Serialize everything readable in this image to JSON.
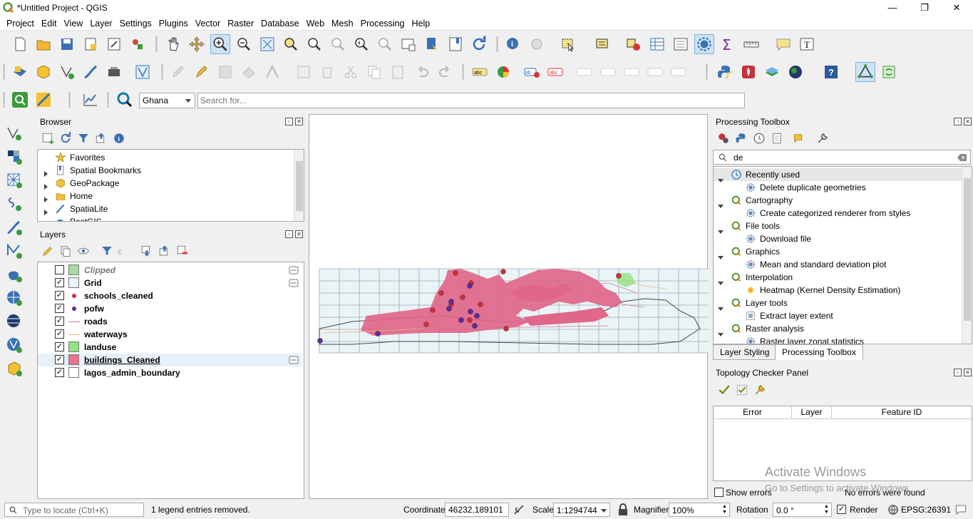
{
  "window": {
    "title": "*Untitled Project - QGIS",
    "minimize": "—",
    "restore": "❐",
    "close": "✕"
  },
  "menu": [
    "Project",
    "Edit",
    "View",
    "Layer",
    "Settings",
    "Plugins",
    "Vector",
    "Raster",
    "Database",
    "Web",
    "Mesh",
    "Processing",
    "Help"
  ],
  "locator_bar": {
    "location_value": "Ghana",
    "search_placeholder": "Search for..."
  },
  "browser": {
    "title": "Browser",
    "items": [
      {
        "label": "Favorites",
        "expandable": false
      },
      {
        "label": "Spatial Bookmarks",
        "expandable": true
      },
      {
        "label": "GeoPackage",
        "expandable": true
      },
      {
        "label": "Home",
        "expandable": true
      },
      {
        "label": "SpatiaLite",
        "expandable": true
      },
      {
        "label": "PostGIS",
        "expandable": true
      }
    ]
  },
  "layers": {
    "title": "Layers",
    "items": [
      {
        "name": "Clipped",
        "checked": false,
        "symbol": "fill",
        "color": "#a8dca0",
        "italic": true
      },
      {
        "name": "Grid",
        "checked": true,
        "symbol": "fill",
        "color": "#eaf4f7"
      },
      {
        "name": "schools_cleaned",
        "checked": true,
        "symbol": "point",
        "color": "#c8313a"
      },
      {
        "name": "pofw",
        "checked": true,
        "symbol": "point",
        "color": "#5a2e98"
      },
      {
        "name": "roads",
        "checked": true,
        "symbol": "line",
        "color": "#d4788e"
      },
      {
        "name": "waterways",
        "checked": true,
        "symbol": "line",
        "color": "#e8b874"
      },
      {
        "name": "landuse",
        "checked": true,
        "symbol": "fill",
        "color": "#8ee47e"
      },
      {
        "name": "buildings_Cleaned",
        "checked": true,
        "symbol": "fill",
        "color": "#e8738f",
        "selected": true
      },
      {
        "name": "lagos_admin_boundary",
        "checked": true,
        "symbol": "fill",
        "color": "#ffffff"
      }
    ]
  },
  "processing_toolbox": {
    "title": "Processing Toolbox",
    "search_value": "de",
    "groups": [
      {
        "label": "Recently used",
        "algorithm": "Delete duplicate geometries"
      },
      {
        "label": "Cartography",
        "algorithm": "Create categorized renderer from styles"
      },
      {
        "label": "File tools",
        "algorithm": "Download file"
      },
      {
        "label": "Graphics",
        "algorithm": "Mean and standard deviation plot"
      },
      {
        "label": "Interpolation",
        "algorithm": "Heatmap (Kernel Density Estimation)"
      },
      {
        "label": "Layer tools",
        "algorithm": "Extract layer extent"
      },
      {
        "label": "Raster analysis",
        "algorithm": "Raster layer zonal statistics"
      }
    ],
    "tabs": [
      "Layer Styling",
      "Processing Toolbox"
    ]
  },
  "topology": {
    "title": "Topology Checker Panel",
    "columns": [
      "Error",
      "Layer",
      "Feature ID"
    ],
    "show_errors_label": "Show errors",
    "status": "No errors were found"
  },
  "watermark": {
    "line1": "Activate Windows",
    "line2": "Go to Settings to activate Windows."
  },
  "statusbar": {
    "locate_placeholder": "Type to locate (Ctrl+K)",
    "message": "1 legend entries removed.",
    "coordinate_label": "Coordinate",
    "coordinate_value": "46232,189101",
    "scale_label": "Scale",
    "scale_value": "1:1294744",
    "magnifier_label": "Magnifier",
    "magnifier_value": "100%",
    "rotation_label": "Rotation",
    "rotation_value": "0.0 °",
    "render_label": "Render",
    "crs": "EPSG:26391"
  },
  "colors": {
    "accent": "#0078d7",
    "buildings": "#e0668a",
    "schools": "#c8313a",
    "pofw": "#5a2e98",
    "grid_fill": "#eaf4f7"
  }
}
